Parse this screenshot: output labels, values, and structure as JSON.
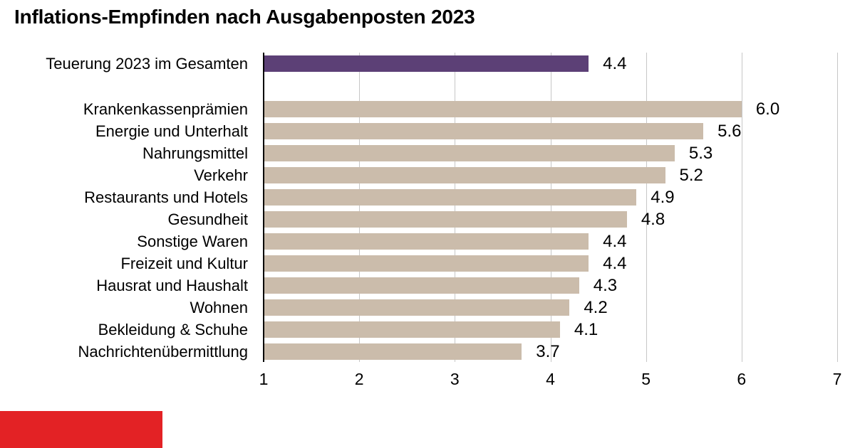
{
  "title": "Inflations-Empfinden nach Ausgabenposten 2023",
  "colors": {
    "background": "#ffffff",
    "text": "#000000",
    "highlight_bar": "#5c4076",
    "default_bar": "#cbbcab",
    "gridline": "#c7c7c7",
    "axis": "#000000",
    "logo_red": "#e32225"
  },
  "chart_data": {
    "type": "bar",
    "orientation": "horizontal",
    "title": "Inflations-Empfinden nach Ausgabenposten 2023",
    "categories": [
      "Teuerung 2023 im Gesamten",
      "Krankenkassenprämien",
      "Energie und Unterhalt",
      "Nahrungsmittel",
      "Verkehr",
      "Restaurants und Hotels",
      "Gesundheit",
      "Sonstige Waren",
      "Freizeit und Kultur",
      "Hausrat und Haushalt",
      "Wohnen",
      "Bekleidung & Schuhe",
      "Nachrichtenübermittlung"
    ],
    "values": [
      4.4,
      6.0,
      5.6,
      5.3,
      5.2,
      4.9,
      4.8,
      4.4,
      4.4,
      4.3,
      4.2,
      4.1,
      3.7
    ],
    "value_labels": [
      "4.4",
      "6.0",
      "5.6",
      "5.3",
      "5.2",
      "4.9",
      "4.8",
      "4.4",
      "4.4",
      "4.3",
      "4.2",
      "4.1",
      "3.7"
    ],
    "highlight_index": 0,
    "group_gap_after_index": 0,
    "xlabel": "",
    "ylabel": "",
    "xlim": [
      1,
      7
    ],
    "xticks": [
      "1",
      "2",
      "3",
      "4",
      "5",
      "6",
      "7"
    ],
    "grid": "vertical",
    "legend": "none"
  },
  "logo": {
    "name": "red-brand-block"
  }
}
